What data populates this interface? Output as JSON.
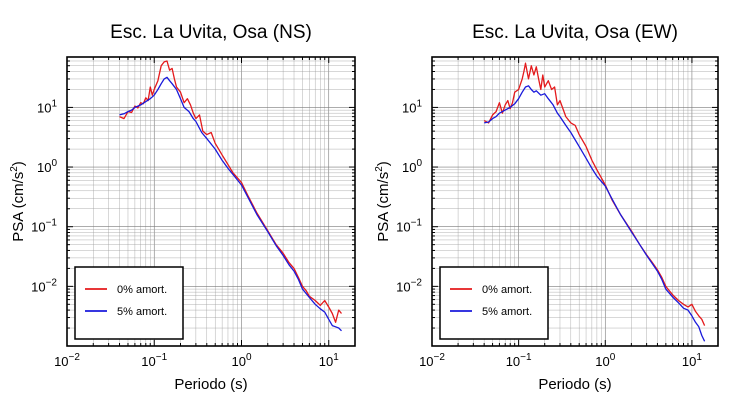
{
  "chart_data": [
    {
      "type": "line",
      "title": "Esc. La Uvita, Osa (NS)",
      "xlabel": "Periodo (s)",
      "ylabel_main": "PSA (cm/s",
      "ylabel_sup": "2",
      "ylabel_tail": ")",
      "xscale": "log",
      "yscale": "log",
      "xlim": [
        0.01,
        20
      ],
      "ylim": [
        0.001,
        70
      ],
      "grid": true,
      "legend_position": "bottom-left",
      "x_ticks": [
        {
          "base": "10",
          "exp": "−2",
          "value": 0.01
        },
        {
          "base": "10",
          "exp": "−1",
          "value": 0.1
        },
        {
          "base": "10",
          "exp": "0",
          "value": 1
        },
        {
          "base": "10",
          "exp": "1",
          "value": 10
        }
      ],
      "y_ticks": [
        {
          "base": "10",
          "exp": "−2",
          "value": 0.01
        },
        {
          "base": "10",
          "exp": "−1",
          "value": 0.1
        },
        {
          "base": "10",
          "exp": "0",
          "value": 1
        },
        {
          "base": "10",
          "exp": "1",
          "value": 10
        }
      ],
      "series": [
        {
          "name": "0% amort.",
          "color": "#e41a1c",
          "x": [
            0.04,
            0.045,
            0.05,
            0.055,
            0.06,
            0.065,
            0.07,
            0.075,
            0.08,
            0.085,
            0.09,
            0.095,
            0.1,
            0.11,
            0.12,
            0.13,
            0.14,
            0.15,
            0.16,
            0.17,
            0.18,
            0.2,
            0.22,
            0.24,
            0.26,
            0.28,
            0.3,
            0.33,
            0.36,
            0.4,
            0.45,
            0.5,
            0.6,
            0.7,
            0.8,
            1.0,
            1.2,
            1.5,
            2.0,
            2.5,
            3.0,
            3.5,
            4.0,
            4.5,
            5.0,
            5.5,
            6.0,
            7.0,
            8.0,
            9.0,
            10.0,
            11.0,
            12.0,
            13.0,
            14.0
          ],
          "y": [
            7.0,
            6.5,
            8.5,
            8.2,
            10.5,
            9.8,
            12.0,
            11.5,
            14.5,
            13.0,
            22.0,
            16.0,
            20.0,
            28.0,
            50.0,
            58.0,
            60.0,
            42.0,
            45.0,
            30.0,
            22.0,
            18.0,
            12.0,
            14.0,
            11.0,
            8.0,
            6.5,
            7.5,
            4.0,
            3.5,
            3.8,
            2.5,
            1.6,
            1.1,
            0.8,
            0.55,
            0.32,
            0.17,
            0.085,
            0.05,
            0.036,
            0.025,
            0.02,
            0.014,
            0.01,
            0.0085,
            0.0068,
            0.0058,
            0.0048,
            0.0058,
            0.0045,
            0.0035,
            0.0025,
            0.004,
            0.0035
          ]
        },
        {
          "name": "5% amort.",
          "color": "#1a1adb",
          "x": [
            0.04,
            0.045,
            0.05,
            0.055,
            0.06,
            0.065,
            0.07,
            0.08,
            0.09,
            0.1,
            0.11,
            0.12,
            0.13,
            0.14,
            0.15,
            0.16,
            0.18,
            0.2,
            0.22,
            0.25,
            0.28,
            0.3,
            0.35,
            0.4,
            0.5,
            0.6,
            0.7,
            0.8,
            1.0,
            1.2,
            1.5,
            2.0,
            2.5,
            3.0,
            3.5,
            4.0,
            4.5,
            5.0,
            6.0,
            7.0,
            8.0,
            9.0,
            10.0,
            11.0,
            12.0,
            13.0,
            14.0
          ],
          "y": [
            7.5,
            7.8,
            8.5,
            9.0,
            10.0,
            10.5,
            11.0,
            12.5,
            14.0,
            16.0,
            20.0,
            25.0,
            30.0,
            32.0,
            28.0,
            25.0,
            20.0,
            14.0,
            10.0,
            8.5,
            6.5,
            5.8,
            3.8,
            3.0,
            2.0,
            1.3,
            0.95,
            0.75,
            0.5,
            0.3,
            0.16,
            0.082,
            0.048,
            0.033,
            0.023,
            0.018,
            0.013,
            0.009,
            0.0065,
            0.005,
            0.0042,
            0.0037,
            0.0028,
            0.0022,
            0.0021,
            0.002,
            0.0018
          ]
        }
      ]
    },
    {
      "type": "line",
      "title": "Esc. La Uvita, Osa (EW)",
      "xlabel": "Periodo (s)",
      "ylabel_main": "PSA (cm/s",
      "ylabel_sup": "2",
      "ylabel_tail": ")",
      "xscale": "log",
      "yscale": "log",
      "xlim": [
        0.01,
        20
      ],
      "ylim": [
        0.001,
        70
      ],
      "grid": true,
      "legend_position": "bottom-left",
      "x_ticks": [
        {
          "base": "10",
          "exp": "−2",
          "value": 0.01
        },
        {
          "base": "10",
          "exp": "−1",
          "value": 0.1
        },
        {
          "base": "10",
          "exp": "0",
          "value": 1
        },
        {
          "base": "10",
          "exp": "1",
          "value": 10
        }
      ],
      "y_ticks": [
        {
          "base": "10",
          "exp": "−2",
          "value": 0.01
        },
        {
          "base": "10",
          "exp": "−1",
          "value": 0.1
        },
        {
          "base": "10",
          "exp": "0",
          "value": 1
        },
        {
          "base": "10",
          "exp": "1",
          "value": 10
        }
      ],
      "series": [
        {
          "name": "0% amort.",
          "color": "#e41a1c",
          "x": [
            0.04,
            0.045,
            0.05,
            0.055,
            0.06,
            0.065,
            0.07,
            0.075,
            0.08,
            0.085,
            0.09,
            0.1,
            0.11,
            0.115,
            0.12,
            0.13,
            0.14,
            0.15,
            0.16,
            0.17,
            0.18,
            0.19,
            0.2,
            0.22,
            0.24,
            0.26,
            0.28,
            0.3,
            0.35,
            0.4,
            0.45,
            0.5,
            0.6,
            0.7,
            0.8,
            1.0,
            1.2,
            1.5,
            2.0,
            2.5,
            3.0,
            3.5,
            4.0,
            4.5,
            5.0,
            6.0,
            7.0,
            8.0,
            9.0,
            10.0,
            11.0,
            12.0,
            13.0,
            14.0
          ],
          "y": [
            6.0,
            5.5,
            7.5,
            8.5,
            12.0,
            8.0,
            11.0,
            13.0,
            9.5,
            12.0,
            18.0,
            20.0,
            30.0,
            40.0,
            55.0,
            30.0,
            50.0,
            35.0,
            48.0,
            30.0,
            20.0,
            35.0,
            22.0,
            28.0,
            20.0,
            22.0,
            11.0,
            13.0,
            7.0,
            5.5,
            5.0,
            3.5,
            2.2,
            1.3,
            0.9,
            0.5,
            0.28,
            0.16,
            0.085,
            0.05,
            0.034,
            0.025,
            0.019,
            0.014,
            0.01,
            0.0072,
            0.0058,
            0.005,
            0.0045,
            0.005,
            0.0038,
            0.0032,
            0.0028,
            0.0022
          ]
        },
        {
          "name": "5% amort.",
          "color": "#1a1adb",
          "x": [
            0.04,
            0.045,
            0.05,
            0.055,
            0.06,
            0.07,
            0.08,
            0.09,
            0.1,
            0.11,
            0.12,
            0.13,
            0.14,
            0.15,
            0.16,
            0.18,
            0.2,
            0.22,
            0.25,
            0.28,
            0.3,
            0.35,
            0.4,
            0.5,
            0.6,
            0.7,
            0.8,
            1.0,
            1.2,
            1.5,
            2.0,
            2.5,
            3.0,
            3.5,
            4.0,
            4.5,
            5.0,
            6.0,
            7.0,
            8.0,
            9.0,
            10.0,
            11.0,
            12.0,
            13.0,
            14.0
          ],
          "y": [
            5.5,
            5.7,
            6.5,
            7.0,
            8.0,
            9.0,
            10.0,
            11.5,
            14.0,
            18.0,
            22.0,
            23.0,
            20.0,
            18.0,
            19.0,
            16.0,
            17.0,
            14.0,
            11.0,
            8.0,
            7.0,
            5.0,
            3.8,
            2.2,
            1.4,
            0.95,
            0.7,
            0.48,
            0.29,
            0.16,
            0.082,
            0.05,
            0.033,
            0.024,
            0.018,
            0.013,
            0.009,
            0.0066,
            0.0053,
            0.0043,
            0.004,
            0.0032,
            0.0025,
            0.0021,
            0.0015,
            0.0012
          ]
        }
      ]
    }
  ]
}
